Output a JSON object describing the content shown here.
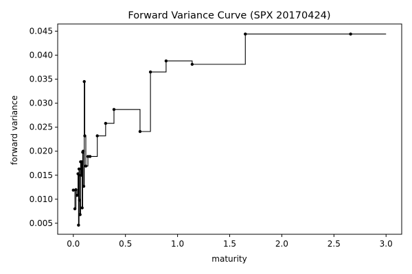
{
  "chart_data": {
    "type": "line",
    "step": "post",
    "title": "Forward Variance Curve (SPX 20170424)",
    "xlabel": "maturity",
    "ylabel": "forward variance",
    "xlim": [
      -0.15,
      3.15
    ],
    "ylim": [
      0.0027,
      0.0465
    ],
    "xticks": [
      0.0,
      0.5,
      1.0,
      1.5,
      2.0,
      2.5,
      3.0
    ],
    "xtick_labels": [
      "0.0",
      "0.5",
      "1.0",
      "1.5",
      "2.0",
      "2.5",
      "3.0"
    ],
    "yticks": [
      0.005,
      0.01,
      0.015,
      0.02,
      0.025,
      0.03,
      0.035,
      0.04,
      0.045
    ],
    "ytick_labels": [
      "0.005",
      "0.010",
      "0.015",
      "0.020",
      "0.025",
      "0.030",
      "0.035",
      "0.040",
      "0.045"
    ],
    "grid": false,
    "line_color": "#000000",
    "marker": "dot",
    "series": [
      {
        "x": [
          0.0,
          0.015,
          0.025,
          0.035,
          0.045,
          0.05,
          0.055,
          0.06,
          0.065,
          0.07,
          0.075,
          0.08,
          0.085,
          0.09,
          0.095,
          0.1,
          0.105,
          0.11,
          0.12,
          0.14,
          0.16,
          0.23,
          0.31,
          0.39,
          0.64,
          0.74,
          0.89,
          1.14,
          1.65,
          2.66
        ],
        "y": [
          0.0119,
          0.008,
          0.012,
          0.0108,
          0.0153,
          0.0046,
          0.0163,
          0.0098,
          0.0068,
          0.0178,
          0.015,
          0.0178,
          0.0082,
          0.0198,
          0.02,
          0.0127,
          0.0345,
          0.0232,
          0.0169,
          0.0189,
          0.0189,
          0.0232,
          0.0258,
          0.0287,
          0.0241,
          0.0365,
          0.0388,
          0.0381,
          0.0444,
          0.0444
        ],
        "x_end": 3.0
      }
    ]
  }
}
